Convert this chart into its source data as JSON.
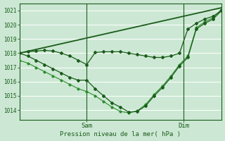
{
  "background_color": "#cce8d4",
  "grid_color": "#b8d8c0",
  "line_color_dark": "#1a5c1a",
  "line_color_light": "#2d8c2d",
  "xlabel": "Pression niveau de la mer( hPa )",
  "yticks": [
    1014,
    1015,
    1016,
    1017,
    1018,
    1019,
    1020,
    1021
  ],
  "ylim": [
    1013.3,
    1021.5
  ],
  "xlim": [
    0,
    48
  ],
  "sam_x": 16,
  "dim_x": 39,
  "series_flat": {
    "x": [
      0,
      48
    ],
    "y": [
      1018.0,
      1021.2
    ]
  },
  "series_upper": {
    "x": [
      0,
      2,
      4,
      6,
      8,
      10,
      12,
      14,
      16,
      18,
      20,
      22,
      24,
      26,
      28,
      30,
      32,
      34,
      36,
      38,
      40,
      42,
      44,
      46,
      48
    ],
    "y": [
      1018.0,
      1018.1,
      1018.15,
      1018.2,
      1018.15,
      1018.0,
      1017.8,
      1017.5,
      1017.2,
      1018.05,
      1018.1,
      1018.1,
      1018.1,
      1018.0,
      1017.9,
      1017.8,
      1017.7,
      1017.7,
      1017.8,
      1018.0,
      1019.7,
      1020.1,
      1020.4,
      1020.6,
      1021.0
    ]
  },
  "series_main": {
    "x": [
      0,
      2,
      4,
      6,
      8,
      10,
      12,
      14,
      16,
      18,
      20,
      22,
      24,
      26,
      28,
      30,
      32,
      34,
      36,
      38,
      40,
      42,
      44,
      46,
      48
    ],
    "y": [
      1018.0,
      1017.8,
      1017.5,
      1017.2,
      1016.9,
      1016.6,
      1016.3,
      1016.1,
      1016.1,
      1015.5,
      1015.0,
      1014.5,
      1014.2,
      1013.85,
      1013.9,
      1014.3,
      1015.0,
      1015.6,
      1016.3,
      1017.1,
      1017.7,
      1019.7,
      1020.1,
      1020.4,
      1021.0
    ]
  },
  "series_lower": {
    "x": [
      0,
      2,
      4,
      6,
      8,
      10,
      12,
      14,
      16,
      18,
      20,
      22,
      24,
      26,
      28,
      30,
      32,
      34,
      36,
      38,
      40,
      42,
      44,
      46,
      48
    ],
    "y": [
      1017.5,
      1017.3,
      1017.0,
      1016.7,
      1016.4,
      1016.1,
      1015.8,
      1015.5,
      1015.3,
      1015.0,
      1014.6,
      1014.2,
      1013.9,
      1013.8,
      1013.95,
      1014.4,
      1015.1,
      1015.7,
      1016.4,
      1017.2,
      1017.8,
      1019.8,
      1020.2,
      1020.5,
      1021.1
    ]
  }
}
